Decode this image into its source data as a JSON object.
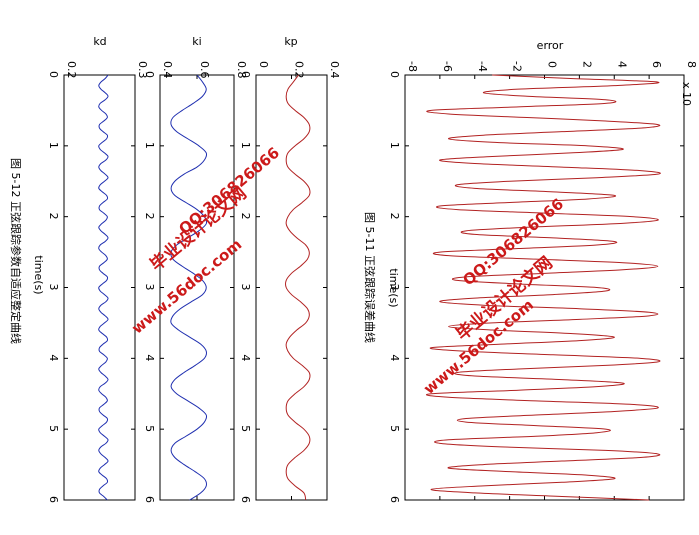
{
  "colors": {
    "error_line": "#b22222",
    "kp_line": "#b22222",
    "ki_line": "#1f2fb0",
    "kd_line": "#1f2fb0",
    "watermark": "#cc1a1a"
  },
  "captions": {
    "left": "图 5-12  正弦跟踪参数自适应整定曲线",
    "right": "图 5-11  正弦跟踪误差曲线"
  },
  "watermarks": [
    {
      "site": "www.56doc.com",
      "qq": "QQ:306826066",
      "name": "毕业设计论文网"
    },
    {
      "site": "www.56doc.com",
      "qq": "QQ:306826066",
      "name": "毕业设计论文网"
    }
  ],
  "chart_data": [
    {
      "id": "error",
      "type": "line",
      "title": "error",
      "xlabel": "time(s)",
      "exponent_label": "x 10",
      "xlim": [
        0,
        6
      ],
      "ylim": [
        -8,
        8
      ],
      "xticks": [
        "0",
        "1",
        "2",
        "3",
        "4",
        "5",
        "6"
      ],
      "yticks": [
        "-8",
        "-6",
        "-4",
        "-2",
        "0",
        "2",
        "4",
        "6",
        "8"
      ],
      "series": [
        {
          "x": [
            0.0,
            0.05,
            0.1,
            0.15,
            0.2,
            0.25,
            0.3,
            0.35,
            0.4,
            0.45,
            0.5,
            0.55,
            0.6,
            0.65,
            0.7,
            0.75,
            0.8,
            0.85,
            0.9,
            0.95,
            1.0,
            1.05,
            1.1,
            1.15,
            1.2,
            1.25,
            1.3,
            1.35,
            1.4,
            1.45,
            1.5,
            1.55,
            1.6,
            1.65,
            1.7,
            1.75,
            1.8,
            1.85,
            1.9,
            1.95,
            2.0,
            2.05,
            2.1,
            2.15,
            2.2,
            2.25,
            2.3,
            2.35,
            2.4,
            2.45,
            2.5,
            2.55,
            2.6,
            2.65,
            2.7,
            2.75,
            2.8,
            2.85,
            2.9,
            2.95,
            3.0,
            3.05,
            3.1,
            3.15,
            3.2,
            3.25,
            3.3,
            3.35,
            3.4,
            3.45,
            3.5,
            3.55,
            3.6,
            3.65,
            3.7,
            3.75,
            3.8,
            3.85,
            3.9,
            3.95,
            4.0,
            4.05,
            4.1,
            4.15,
            4.2,
            4.25,
            4.3,
            4.35,
            4.4,
            4.45,
            4.5,
            4.55,
            4.6,
            4.65,
            4.7,
            4.75,
            4.8,
            4.85,
            4.9,
            4.95,
            5.0,
            5.05,
            5.1,
            5.15,
            5.2,
            5.25,
            5.3,
            5.35,
            5.4,
            5.45,
            5.5,
            5.55,
            5.6,
            5.65,
            5.7,
            5.75,
            5.8,
            5.85,
            5.9,
            5.95,
            6.0
          ],
          "y": [
            -3.0,
            1.5,
            6.5,
            4.0,
            -1.5,
            -3.5,
            -1.0,
            3.5,
            3.5,
            -1.5,
            -6.5,
            -5.5,
            -1.0,
            3.5,
            6.5,
            5.5,
            1.0,
            -3.5,
            -5.5,
            -3.0,
            2.5,
            4.5,
            1.5,
            -3.0,
            -6.0,
            -4.0,
            1.0,
            5.5,
            6.5,
            3.0,
            -2.0,
            -5.0,
            -4.0,
            0.5,
            4.0,
            2.5,
            -2.0,
            -6.0,
            -5.0,
            0.0,
            5.0,
            6.5,
            4.0,
            -1.0,
            -4.5,
            -4.0,
            0.5,
            4.0,
            3.0,
            -1.5,
            -6.0,
            -5.5,
            -0.5,
            4.5,
            6.5,
            4.5,
            0.0,
            -4.5,
            -5.0,
            -1.5,
            3.0,
            3.5,
            0.5,
            -4.0,
            -6.0,
            -3.5,
            2.0,
            6.0,
            6.0,
            2.0,
            -3.0,
            -5.5,
            -3.0,
            1.5,
            4.0,
            2.0,
            -2.5,
            -6.5,
            -4.5,
            0.5,
            5.5,
            6.5,
            3.5,
            -1.5,
            -5.0,
            -4.0,
            1.0,
            4.5,
            3.0,
            -1.5,
            -6.5,
            -5.5,
            -0.5,
            5.0,
            6.5,
            4.0,
            -0.5,
            -4.5,
            -4.5,
            -0.5,
            3.5,
            3.0,
            -0.5,
            -5.5,
            -6.0,
            -2.5,
            3.5,
            6.5,
            5.5,
            1.0,
            -3.5,
            -5.5,
            -2.0,
            2.5,
            4.0,
            1.0,
            -3.5,
            -6.5,
            -4.0,
            1.0,
            6.0
          ]
        }
      ]
    },
    {
      "id": "kp",
      "type": "line",
      "title": "kp",
      "xlabel": "",
      "xlim": [
        0,
        6
      ],
      "ylim": [
        0,
        0.4
      ],
      "xticks": [
        "0",
        "1",
        "2",
        "3",
        "4",
        "5",
        "6"
      ],
      "yticks": [
        "0",
        "0.2",
        "0.4"
      ],
      "series": [
        {
          "x": [
            0.0,
            0.1,
            0.2,
            0.3,
            0.4,
            0.5,
            0.6,
            0.7,
            0.8,
            0.9,
            1.0,
            1.1,
            1.2,
            1.3,
            1.4,
            1.5,
            1.6,
            1.7,
            1.8,
            1.9,
            2.0,
            2.1,
            2.2,
            2.3,
            2.4,
            2.5,
            2.6,
            2.7,
            2.8,
            2.9,
            3.0,
            3.1,
            3.2,
            3.3,
            3.4,
            3.5,
            3.6,
            3.7,
            3.8,
            3.9,
            4.0,
            4.1,
            4.2,
            4.3,
            4.4,
            4.5,
            4.6,
            4.7,
            4.8,
            4.9,
            5.0,
            5.1,
            5.2,
            5.3,
            5.4,
            5.5,
            5.6,
            5.7,
            5.8,
            5.9,
            6.0
          ],
          "y": [
            0.24,
            0.21,
            0.18,
            0.17,
            0.18,
            0.22,
            0.27,
            0.3,
            0.3,
            0.27,
            0.22,
            0.18,
            0.17,
            0.18,
            0.22,
            0.27,
            0.3,
            0.3,
            0.26,
            0.21,
            0.18,
            0.17,
            0.19,
            0.23,
            0.28,
            0.3,
            0.29,
            0.25,
            0.2,
            0.17,
            0.17,
            0.2,
            0.25,
            0.29,
            0.3,
            0.28,
            0.23,
            0.19,
            0.17,
            0.18,
            0.21,
            0.26,
            0.3,
            0.3,
            0.27,
            0.22,
            0.18,
            0.17,
            0.18,
            0.22,
            0.27,
            0.3,
            0.3,
            0.27,
            0.22,
            0.18,
            0.17,
            0.18,
            0.22,
            0.27,
            0.28
          ]
        }
      ]
    },
    {
      "id": "ki",
      "type": "line",
      "title": "ki",
      "xlabel": "",
      "xlim": [
        0,
        6
      ],
      "ylim": [
        0.4,
        0.8
      ],
      "xticks": [
        "0",
        "1",
        "2",
        "3",
        "4",
        "5",
        "6"
      ],
      "yticks": [
        "0.4",
        "0.6",
        "0.8"
      ],
      "series": [
        {
          "x": [
            0.0,
            0.1,
            0.2,
            0.3,
            0.4,
            0.5,
            0.6,
            0.7,
            0.8,
            0.9,
            1.0,
            1.1,
            1.2,
            1.3,
            1.4,
            1.5,
            1.6,
            1.7,
            1.8,
            1.9,
            2.0,
            2.1,
            2.2,
            2.3,
            2.4,
            2.5,
            2.6,
            2.7,
            2.8,
            2.9,
            3.0,
            3.1,
            3.2,
            3.3,
            3.4,
            3.5,
            3.6,
            3.7,
            3.8,
            3.9,
            4.0,
            4.1,
            4.2,
            4.3,
            4.4,
            4.5,
            4.6,
            4.7,
            4.8,
            4.9,
            5.0,
            5.1,
            5.2,
            5.3,
            5.4,
            5.5,
            5.6,
            5.7,
            5.8,
            5.9,
            6.0
          ],
          "y": [
            0.6,
            0.63,
            0.65,
            0.63,
            0.58,
            0.52,
            0.47,
            0.46,
            0.49,
            0.55,
            0.61,
            0.65,
            0.64,
            0.6,
            0.53,
            0.48,
            0.46,
            0.48,
            0.54,
            0.6,
            0.64,
            0.65,
            0.61,
            0.55,
            0.49,
            0.46,
            0.47,
            0.52,
            0.58,
            0.63,
            0.65,
            0.63,
            0.57,
            0.51,
            0.47,
            0.46,
            0.5,
            0.56,
            0.62,
            0.65,
            0.64,
            0.59,
            0.53,
            0.48,
            0.46,
            0.49,
            0.55,
            0.61,
            0.65,
            0.64,
            0.6,
            0.54,
            0.48,
            0.46,
            0.48,
            0.53,
            0.59,
            0.64,
            0.65,
            0.62,
            0.56
          ]
        }
      ]
    },
    {
      "id": "kd",
      "type": "line",
      "title": "kd",
      "xlabel": "time(s)",
      "xlim": [
        0,
        6
      ],
      "ylim": [
        0.2,
        0.3
      ],
      "xticks": [
        "0",
        "1",
        "2",
        "3",
        "4",
        "5",
        "6"
      ],
      "yticks": [
        "0.2",
        "0.3"
      ],
      "series": [
        {
          "x": [
            0.0,
            0.05,
            0.1,
            0.15,
            0.2,
            0.25,
            0.3,
            0.35,
            0.4,
            0.45,
            0.5,
            0.55,
            0.6,
            0.65,
            0.7,
            0.75,
            0.8,
            0.85,
            0.9,
            0.95,
            1.0,
            1.05,
            1.1,
            1.15,
            1.2,
            1.25,
            1.3,
            1.35,
            1.4,
            1.45,
            1.5,
            1.55,
            1.6,
            1.65,
            1.7,
            1.75,
            1.8,
            1.85,
            1.9,
            1.95,
            2.0,
            2.05,
            2.1,
            2.15,
            2.2,
            2.25,
            2.3,
            2.35,
            2.4,
            2.45,
            2.5,
            2.55,
            2.6,
            2.65,
            2.7,
            2.75,
            2.8,
            2.85,
            2.9,
            2.95,
            3.0,
            3.05,
            3.1,
            3.15,
            3.2,
            3.25,
            3.3,
            3.35,
            3.4,
            3.45,
            3.5,
            3.55,
            3.6,
            3.65,
            3.7,
            3.75,
            3.8,
            3.85,
            3.9,
            3.95,
            4.0,
            4.05,
            4.1,
            4.15,
            4.2,
            4.25,
            4.3,
            4.35,
            4.4,
            4.45,
            4.5,
            4.55,
            4.6,
            4.65,
            4.7,
            4.75,
            4.8,
            4.85,
            4.9,
            4.95,
            5.0,
            5.05,
            5.1,
            5.15,
            5.2,
            5.25,
            5.3,
            5.35,
            5.4,
            5.45,
            5.5,
            5.55,
            5.6,
            5.65,
            5.7,
            5.75,
            5.8,
            5.85,
            5.9,
            5.95,
            6.0
          ],
          "y": [
            0.262,
            0.258,
            0.252,
            0.249,
            0.252,
            0.258,
            0.262,
            0.258,
            0.251,
            0.249,
            0.253,
            0.259,
            0.261,
            0.256,
            0.25,
            0.25,
            0.255,
            0.261,
            0.26,
            0.254,
            0.249,
            0.251,
            0.257,
            0.262,
            0.259,
            0.252,
            0.249,
            0.252,
            0.258,
            0.262,
            0.257,
            0.251,
            0.249,
            0.254,
            0.26,
            0.261,
            0.255,
            0.25,
            0.25,
            0.256,
            0.261,
            0.259,
            0.253,
            0.249,
            0.252,
            0.258,
            0.262,
            0.258,
            0.251,
            0.249,
            0.253,
            0.259,
            0.261,
            0.256,
            0.25,
            0.25,
            0.255,
            0.261,
            0.26,
            0.254,
            0.249,
            0.251,
            0.257,
            0.262,
            0.259,
            0.252,
            0.249,
            0.252,
            0.258,
            0.262,
            0.257,
            0.251,
            0.249,
            0.254,
            0.26,
            0.261,
            0.255,
            0.25,
            0.25,
            0.256,
            0.261,
            0.259,
            0.253,
            0.249,
            0.252,
            0.258,
            0.262,
            0.258,
            0.251,
            0.249,
            0.253,
            0.259,
            0.261,
            0.256,
            0.25,
            0.25,
            0.255,
            0.261,
            0.26,
            0.254,
            0.249,
            0.251,
            0.257,
            0.262,
            0.259,
            0.252,
            0.249,
            0.252,
            0.258,
            0.262,
            0.257,
            0.251,
            0.249,
            0.254,
            0.26,
            0.261,
            0.255,
            0.25,
            0.25,
            0.256,
            0.261
          ]
        }
      ]
    }
  ]
}
